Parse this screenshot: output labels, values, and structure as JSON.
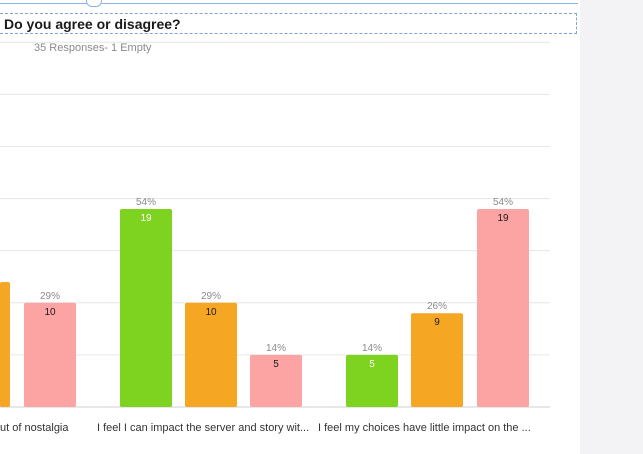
{
  "question": {
    "title": "Do you agree or disagree?",
    "responses": "35 Responses- 1 Empty"
  },
  "chart_data": {
    "type": "bar",
    "ylim": [
      0,
      35
    ],
    "grid": true,
    "categories": [
      "...ut of nostalgia",
      "I feel I can impact the server and story wit...",
      "I feel my choices have little impact on the ..."
    ],
    "category_labels_visible": [
      "ut of nostalgia",
      "I feel I can impact the server and story wit...",
      "I feel my choices have little impact on the ..."
    ],
    "series": [
      {
        "color": "#7ed321",
        "values": [
          null,
          19,
          5
        ],
        "percents": [
          null,
          "54%",
          "14%"
        ]
      },
      {
        "color": "#f5a623",
        "values": [
          null,
          10,
          9
        ],
        "percents": [
          null,
          "29%",
          "26%"
        ]
      },
      {
        "color": "#fca3a3",
        "values": [
          10,
          5,
          19
        ],
        "percents": [
          "29%",
          "14%",
          "54%"
        ]
      }
    ],
    "partial_bar": {
      "color": "#f5a623"
    }
  }
}
